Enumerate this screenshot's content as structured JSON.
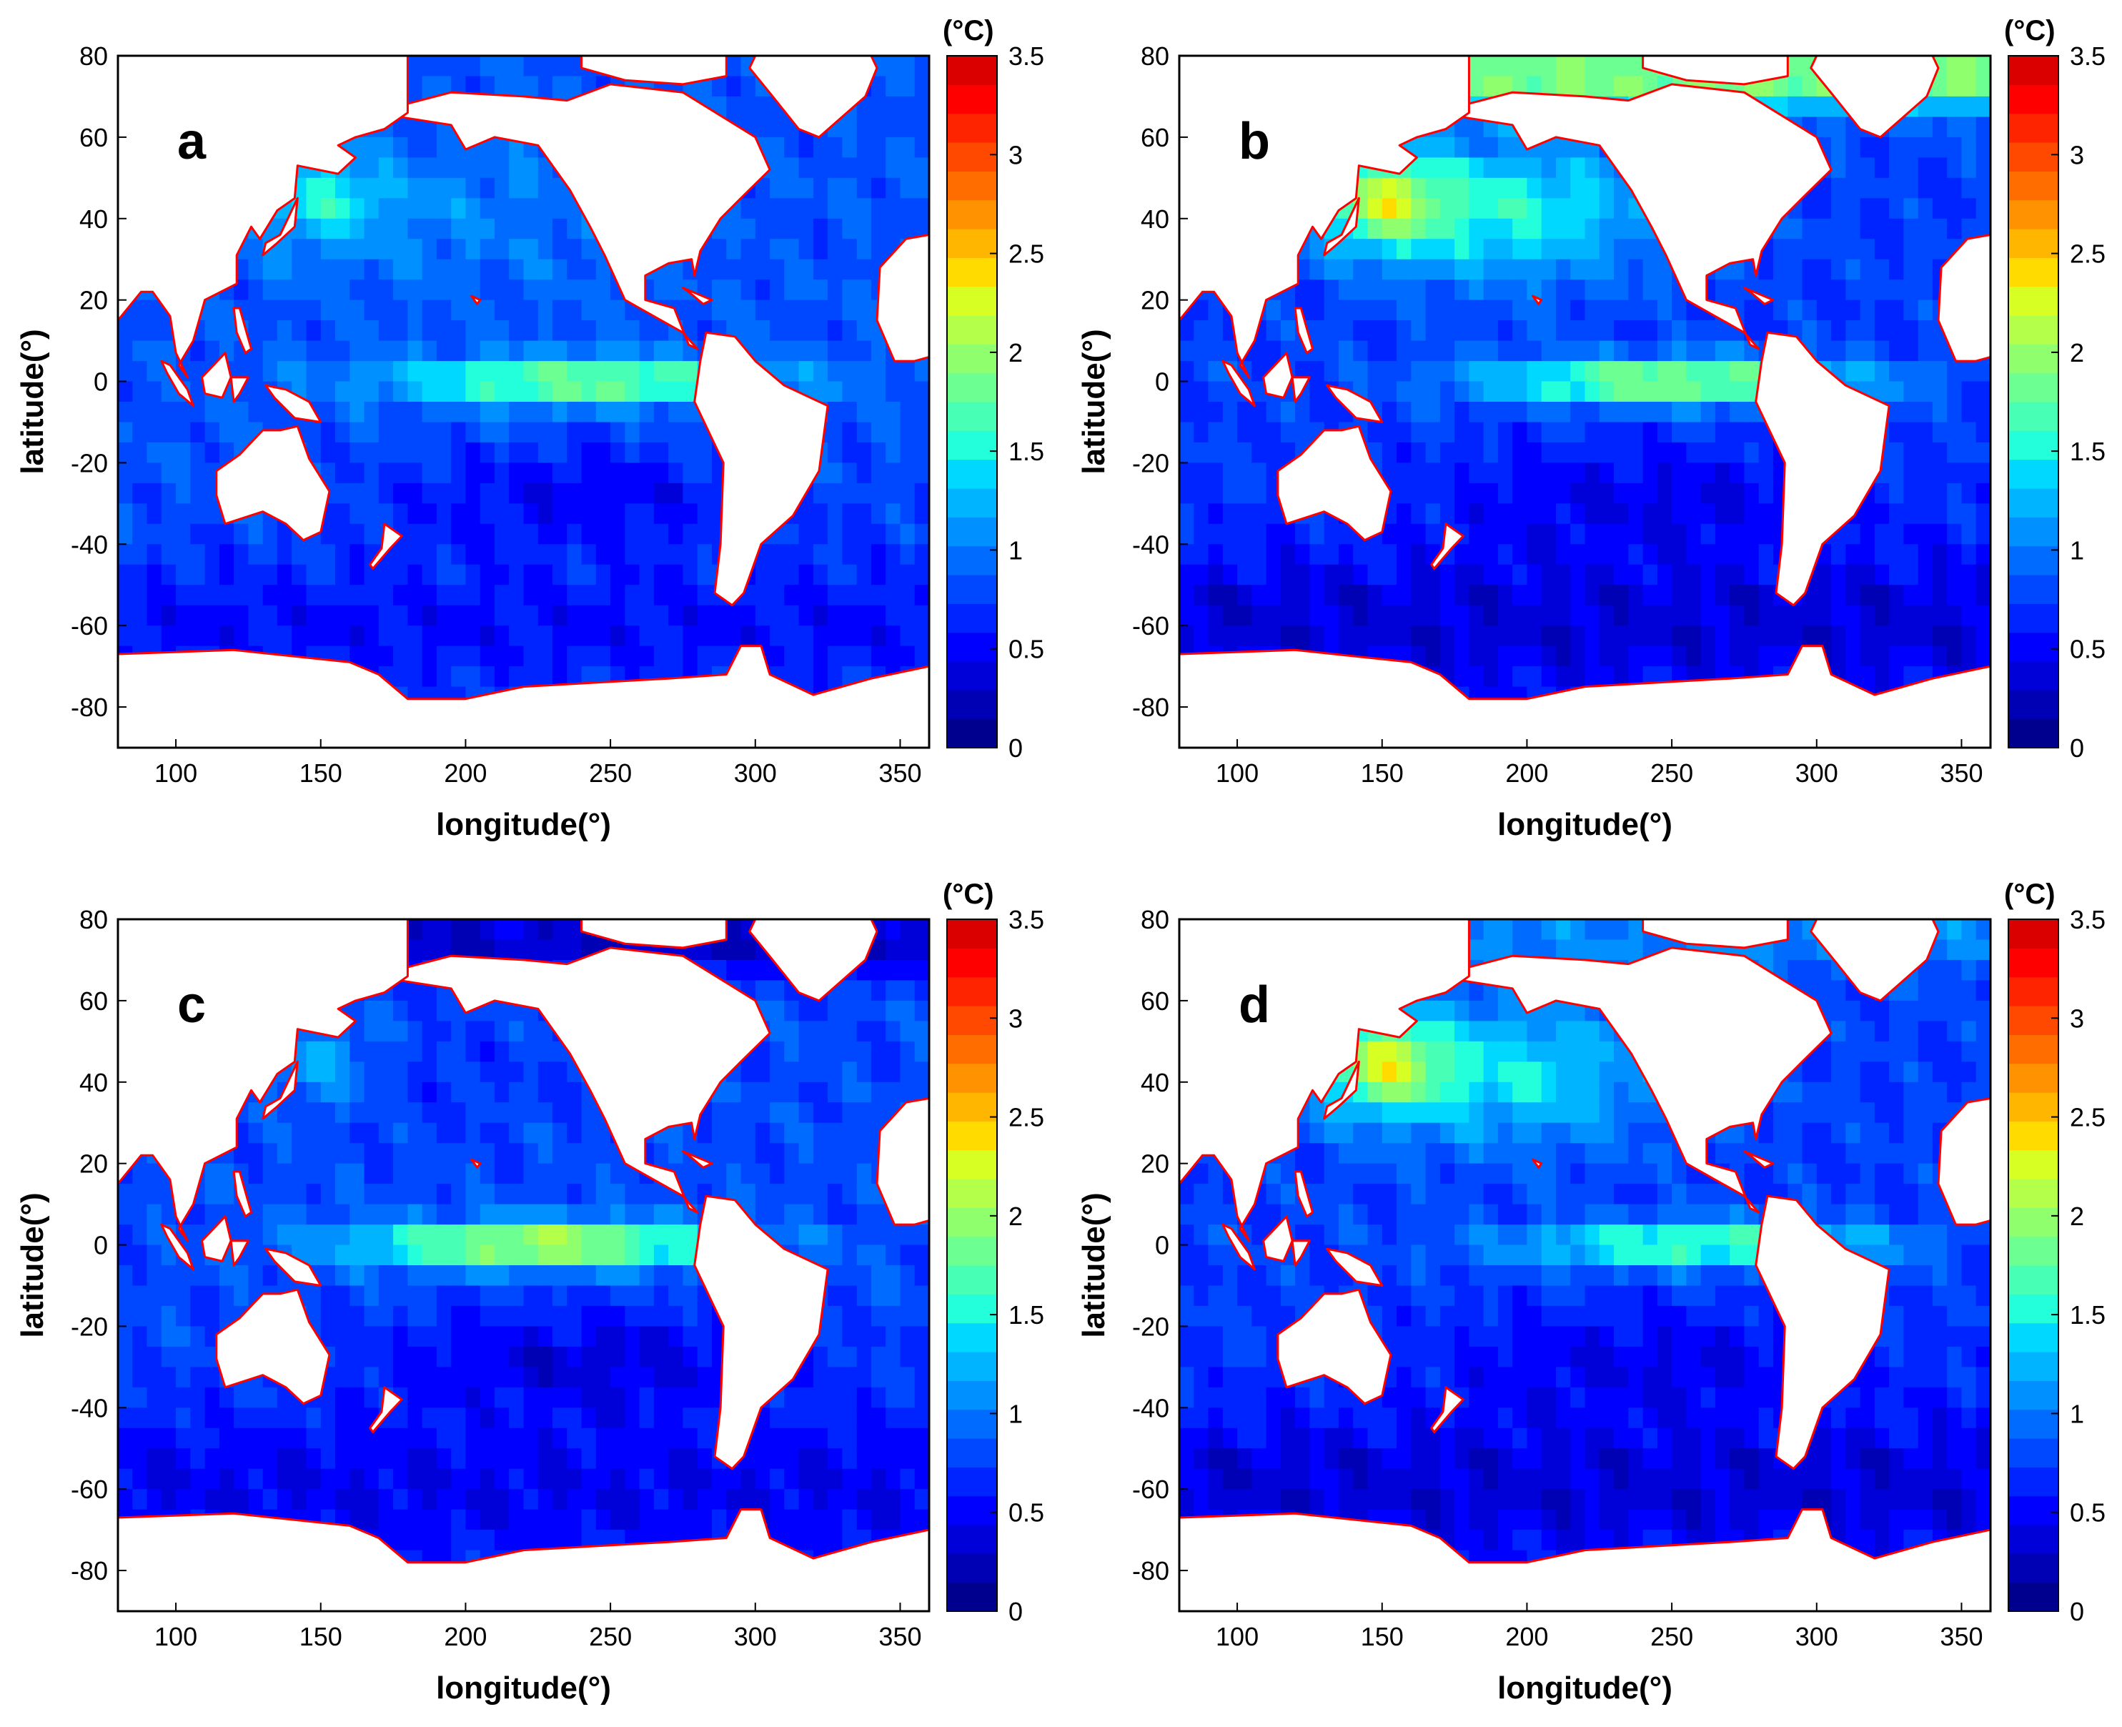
{
  "colormap": [
    "#00008f",
    "#0000b4",
    "#0000d8",
    "#0000ff",
    "#0024ff",
    "#0048ff",
    "#006cff",
    "#0090ff",
    "#00b4ff",
    "#00d8ff",
    "#24ffdb",
    "#48ffb6",
    "#6cff92",
    "#90ff6d",
    "#b4ff49",
    "#d8ff24",
    "#ffdb00",
    "#ffb600",
    "#ff9200",
    "#ff6d00",
    "#ff4900",
    "#ff2400",
    "#ff0000",
    "#db0000"
  ],
  "coast_color": "#ff0000",
  "land_color": "#ffffff",
  "colorbar": {
    "unit": "(°C)",
    "ticks": [
      "0",
      "0.5",
      "1",
      "1.5",
      "2",
      "2.5",
      "3",
      "3.5"
    ],
    "range": [
      0,
      3.5
    ]
  },
  "chart_data": [
    {
      "type": "heatmap",
      "panel": "a",
      "xlabel": "longitude(°)",
      "ylabel": "latitude(°)",
      "xlim": [
        80,
        360
      ],
      "ylim": [
        -90,
        80
      ],
      "xticks": [
        "100",
        "150",
        "200",
        "250",
        "300",
        "350"
      ],
      "yticks": [
        "80",
        "60",
        "40",
        "20",
        "0",
        "-20",
        "-40",
        "-60",
        "-80"
      ],
      "field": {
        "base": 0.85,
        "equatorial": 1.1,
        "eq_lon": 240,
        "north_pacific": 0.2,
        "arctic": 0.0,
        "southern": -0.3,
        "kuroshio": 0.6,
        "subtropical_low": -0.35
      }
    },
    {
      "type": "heatmap",
      "panel": "b",
      "xlabel": "longitude(°)",
      "ylabel": "latitude(°)",
      "xlim": [
        80,
        360
      ],
      "ylim": [
        -90,
        80
      ],
      "xticks": [
        "100",
        "150",
        "200",
        "250",
        "300",
        "350"
      ],
      "yticks": [
        "80",
        "60",
        "40",
        "20",
        "0",
        "-20",
        "-40",
        "-60",
        "-80"
      ],
      "field": {
        "base": 0.75,
        "equatorial": 1.3,
        "eq_lon": 250,
        "north_pacific": 0.8,
        "arctic": 1.2,
        "southern": -0.4,
        "kuroshio": 1.0,
        "subtropical_low": -0.3
      }
    },
    {
      "type": "heatmap",
      "panel": "c",
      "xlabel": "longitude(°)",
      "ylabel": "latitude(°)",
      "xlim": [
        80,
        360
      ],
      "ylim": [
        -90,
        80
      ],
      "xticks": [
        "100",
        "150",
        "200",
        "250",
        "300",
        "350"
      ],
      "yticks": [
        "80",
        "60",
        "40",
        "20",
        "0",
        "-20",
        "-40",
        "-60",
        "-80"
      ],
      "field": {
        "base": 0.8,
        "equatorial": 1.4,
        "eq_lon": 225,
        "north_pacific": -0.1,
        "arctic": -0.5,
        "southern": -0.35,
        "kuroshio": 0.4,
        "subtropical_low": -0.4
      }
    },
    {
      "type": "heatmap",
      "panel": "d",
      "xlabel": "longitude(°)",
      "ylabel": "latitude(°)",
      "xlim": [
        80,
        360
      ],
      "ylim": [
        -90,
        80
      ],
      "xticks": [
        "100",
        "150",
        "200",
        "250",
        "300",
        "350"
      ],
      "yticks": [
        "80",
        "60",
        "40",
        "20",
        "0",
        "-20",
        "-40",
        "-60",
        "-80"
      ],
      "field": {
        "base": 0.75,
        "equatorial": 1.0,
        "eq_lon": 260,
        "north_pacific": 0.7,
        "arctic": 0.3,
        "southern": -0.4,
        "kuroshio": 1.1,
        "subtropical_low": -0.3
      }
    }
  ],
  "land": [
    {
      "name": "north-america",
      "pts": [
        [
          168,
          66
        ],
        [
          195,
          71
        ],
        [
          220,
          70
        ],
        [
          235,
          69
        ],
        [
          250,
          73
        ],
        [
          275,
          71
        ],
        [
          300,
          60
        ],
        [
          305,
          52
        ],
        [
          295,
          45
        ],
        [
          288,
          40
        ],
        [
          281,
          32
        ],
        [
          279,
          26
        ],
        [
          278,
          30
        ],
        [
          270,
          29
        ],
        [
          262,
          26
        ],
        [
          262,
          20
        ],
        [
          272,
          18
        ],
        [
          277,
          9
        ],
        [
          280,
          8
        ],
        [
          275,
          12
        ],
        [
          265,
          16
        ],
        [
          255,
          20
        ],
        [
          248,
          31
        ],
        [
          243,
          38
        ],
        [
          236,
          47
        ],
        [
          225,
          58
        ],
        [
          210,
          60
        ],
        [
          200,
          57
        ],
        [
          195,
          63
        ]
      ]
    },
    {
      "name": "south-america",
      "pts": [
        [
          283,
          12
        ],
        [
          293,
          11
        ],
        [
          300,
          5
        ],
        [
          310,
          -1
        ],
        [
          325,
          -6
        ],
        [
          322,
          -22
        ],
        [
          313,
          -33
        ],
        [
          302,
          -40
        ],
        [
          296,
          -52
        ],
        [
          292,
          -55
        ],
        [
          286,
          -52
        ],
        [
          288,
          -40
        ],
        [
          289,
          -20
        ],
        [
          279,
          -5
        ],
        [
          281,
          5
        ]
      ]
    },
    {
      "name": "eurasia",
      "pts": [
        [
          80,
          80
        ],
        [
          180,
          80
        ],
        [
          180,
          66
        ],
        [
          172,
          62
        ],
        [
          162,
          60
        ],
        [
          156,
          58
        ],
        [
          162,
          55
        ],
        [
          156,
          51
        ],
        [
          142,
          53
        ],
        [
          141,
          45
        ],
        [
          135,
          42
        ],
        [
          129,
          35
        ],
        [
          126,
          38
        ],
        [
          121,
          31
        ],
        [
          121,
          24
        ],
        [
          110,
          20
        ],
        [
          106,
          10
        ],
        [
          101,
          4
        ],
        [
          104,
          1
        ],
        [
          100,
          7
        ],
        [
          98,
          16
        ],
        [
          92,
          22
        ],
        [
          88,
          22
        ],
        [
          80,
          15
        ],
        [
          80,
          80
        ]
      ]
    },
    {
      "name": "greenland",
      "pts": [
        [
          300,
          80
        ],
        [
          340,
          80
        ],
        [
          342,
          77
        ],
        [
          338,
          70
        ],
        [
          322,
          60
        ],
        [
          315,
          62
        ],
        [
          306,
          70
        ],
        [
          298,
          77
        ]
      ]
    },
    {
      "name": "canada-arctic",
      "pts": [
        [
          240,
          80
        ],
        [
          290,
          80
        ],
        [
          290,
          75
        ],
        [
          275,
          73
        ],
        [
          255,
          74
        ],
        [
          240,
          77
        ]
      ]
    },
    {
      "name": "australia",
      "pts": [
        [
          114,
          -22
        ],
        [
          122,
          -18
        ],
        [
          130,
          -12
        ],
        [
          136,
          -12
        ],
        [
          142,
          -11
        ],
        [
          146,
          -19
        ],
        [
          153,
          -27
        ],
        [
          150,
          -37
        ],
        [
          144,
          -39
        ],
        [
          138,
          -35
        ],
        [
          130,
          -32
        ],
        [
          117,
          -35
        ],
        [
          114,
          -28
        ]
      ]
    },
    {
      "name": "borneo",
      "pts": [
        [
          109,
          1
        ],
        [
          113,
          4
        ],
        [
          117,
          7
        ],
        [
          119,
          1
        ],
        [
          116,
          -4
        ],
        [
          110,
          -3
        ]
      ]
    },
    {
      "name": "sumatra",
      "pts": [
        [
          95,
          5
        ],
        [
          98,
          4
        ],
        [
          104,
          -2
        ],
        [
          106,
          -6
        ],
        [
          101,
          -3
        ],
        [
          97,
          2
        ]
      ]
    },
    {
      "name": "new-guinea",
      "pts": [
        [
          131,
          -1
        ],
        [
          138,
          -2
        ],
        [
          146,
          -5
        ],
        [
          150,
          -10
        ],
        [
          141,
          -9
        ],
        [
          134,
          -4
        ]
      ]
    },
    {
      "name": "sulawesi",
      "pts": [
        [
          119,
          1
        ],
        [
          125,
          1
        ],
        [
          122,
          -3
        ],
        [
          120,
          -5
        ]
      ]
    },
    {
      "name": "philippines",
      "pts": [
        [
          120,
          18
        ],
        [
          122,
          18
        ],
        [
          126,
          8
        ],
        [
          124,
          7
        ],
        [
          121,
          12
        ]
      ]
    },
    {
      "name": "japan",
      "pts": [
        [
          130,
          31
        ],
        [
          135,
          34
        ],
        [
          141,
          38
        ],
        [
          142,
          45
        ],
        [
          140,
          42
        ],
        [
          136,
          36
        ],
        [
          131,
          34
        ]
      ]
    },
    {
      "name": "new-zealand",
      "pts": [
        [
          172,
          -35
        ],
        [
          178,
          -38
        ],
        [
          174,
          -41
        ],
        [
          168,
          -46
        ],
        [
          167,
          -45
        ],
        [
          171,
          -41
        ]
      ]
    },
    {
      "name": "antarctica",
      "pts": [
        [
          80,
          -67
        ],
        [
          120,
          -66
        ],
        [
          160,
          -69
        ],
        [
          170,
          -72
        ],
        [
          180,
          -78
        ],
        [
          200,
          -78
        ],
        [
          220,
          -75
        ],
        [
          245,
          -74
        ],
        [
          270,
          -73
        ],
        [
          290,
          -72
        ],
        [
          295,
          -65
        ],
        [
          302,
          -65
        ],
        [
          305,
          -72
        ],
        [
          320,
          -77
        ],
        [
          340,
          -73
        ],
        [
          360,
          -70
        ],
        [
          360,
          -90
        ],
        [
          80,
          -90
        ]
      ]
    },
    {
      "name": "africa",
      "pts": [
        [
          360,
          36
        ],
        [
          352,
          35
        ],
        [
          343,
          28
        ],
        [
          342,
          15
        ],
        [
          348,
          5
        ],
        [
          355,
          5
        ],
        [
          360,
          6
        ]
      ]
    },
    {
      "name": "hawaii",
      "pts": [
        [
          202,
          21
        ],
        [
          205,
          20
        ],
        [
          204,
          19
        ]
      ]
    },
    {
      "name": "cuba",
      "pts": [
        [
          275,
          23
        ],
        [
          285,
          20
        ],
        [
          282,
          19
        ],
        [
          277,
          22
        ]
      ]
    }
  ]
}
